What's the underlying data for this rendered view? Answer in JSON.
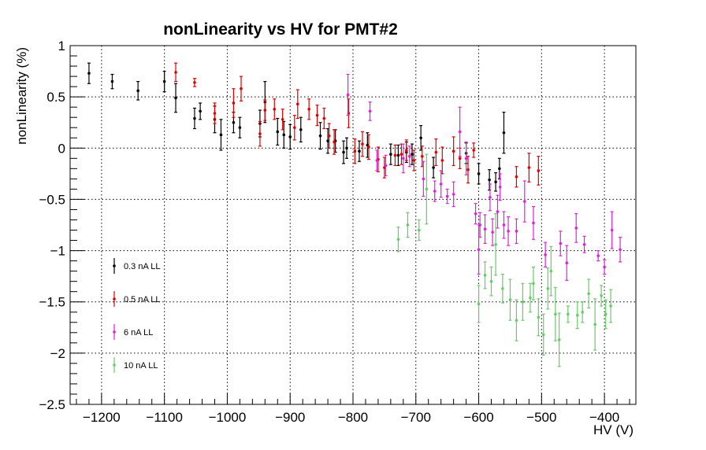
{
  "chart_data": {
    "type": "scatter",
    "title": "nonLinearity vs HV for PMT#2",
    "xlabel": "HV (V)",
    "ylabel": "nonLinearity (%)",
    "xlim": [
      -1250,
      -350
    ],
    "ylim": [
      -2.5,
      1
    ],
    "grid": true,
    "legend_position": "left",
    "x_ticks": [
      -1200,
      -1100,
      -1000,
      -900,
      -800,
      -700,
      -600,
      -500,
      -400
    ],
    "x_tick_labels": [
      "−1200",
      "−1100",
      "−1000",
      "−900",
      "−800",
      "−700",
      "−600",
      "−500",
      "−400"
    ],
    "y_ticks": [
      -2.5,
      -2,
      -1.5,
      -1,
      -0.5,
      0,
      0.5,
      1
    ],
    "y_tick_labels": [
      "−2.5",
      "−2",
      "−1.5",
      "−1",
      "−0.5",
      "0",
      "0.5",
      "1"
    ],
    "series": [
      {
        "name": "0.3 nA LL",
        "color": "#000000",
        "points": [
          [
            -1220,
            0.73,
            0.1
          ],
          [
            -1183,
            0.65,
            0.07
          ],
          [
            -1142,
            0.56,
            0.09
          ],
          [
            -1100,
            0.65,
            0.1
          ],
          [
            -1082,
            0.49,
            0.14
          ],
          [
            -1052,
            0.29,
            0.1
          ],
          [
            -1043,
            0.36,
            0.08
          ],
          [
            -1020,
            0.28,
            0.13
          ],
          [
            -1010,
            0.13,
            0.15
          ],
          [
            -990,
            0.25,
            0.1
          ],
          [
            -980,
            0.2,
            0.1
          ],
          [
            -948,
            0.24,
            0.13
          ],
          [
            -940,
            0.45,
            0.2
          ],
          [
            -920,
            0.16,
            0.13
          ],
          [
            -910,
            0.13,
            0.13
          ],
          [
            -900,
            0.11,
            0.12
          ],
          [
            -883,
            0.18,
            0.12
          ],
          [
            -852,
            0.12,
            0.13
          ],
          [
            -840,
            0.07,
            0.12
          ],
          [
            -828,
            0.07,
            0.11
          ],
          [
            -815,
            -0.04,
            0.11
          ],
          [
            -810,
            0.0,
            0.1
          ],
          [
            -790,
            -0.03,
            0.1
          ],
          [
            -777,
            0.03,
            0.12
          ],
          [
            -740,
            -0.06,
            0.1
          ],
          [
            -728,
            -0.07,
            0.1
          ],
          [
            -715,
            -0.04,
            0.1
          ],
          [
            -706,
            -0.06,
            0.1
          ],
          [
            -692,
            0.1,
            0.12
          ],
          [
            -672,
            -0.19,
            0.1
          ],
          [
            -620,
            -0.05,
            0.1
          ],
          [
            -600,
            -0.25,
            0.1
          ],
          [
            -583,
            -0.31,
            0.1
          ],
          [
            -573,
            -0.33,
            0.09
          ],
          [
            -567,
            -0.2,
            0.1
          ],
          [
            -560,
            0.15,
            0.2
          ]
        ]
      },
      {
        "name": "0.5 nA LL",
        "color": "#e00000",
        "points": [
          [
            -1082,
            0.74,
            0.09
          ],
          [
            -1052,
            0.64,
            0.04
          ],
          [
            -1020,
            0.34,
            0.1
          ],
          [
            -990,
            0.44,
            0.14
          ],
          [
            -978,
            0.58,
            0.12
          ],
          [
            -948,
            0.14,
            0.12
          ],
          [
            -940,
            0.37,
            0.1
          ],
          [
            -925,
            0.38,
            0.1
          ],
          [
            -912,
            0.28,
            0.1
          ],
          [
            -893,
            0.2,
            0.12
          ],
          [
            -888,
            0.43,
            0.14
          ],
          [
            -870,
            0.38,
            0.1
          ],
          [
            -857,
            0.32,
            0.1
          ],
          [
            -846,
            0.29,
            0.1
          ],
          [
            -838,
            0.12,
            0.12
          ],
          [
            -830,
            0.06,
            0.12
          ],
          [
            -807,
            0.34,
            0.14
          ],
          [
            -797,
            -0.03,
            0.12
          ],
          [
            -785,
            0.04,
            0.12
          ],
          [
            -775,
            0.01,
            0.12
          ],
          [
            -760,
            -0.11,
            0.12
          ],
          [
            -750,
            -0.19,
            0.1
          ],
          [
            -733,
            -0.07,
            0.1
          ],
          [
            -723,
            -0.06,
            0.1
          ],
          [
            -715,
            -0.02,
            0.1
          ],
          [
            -703,
            -0.12,
            0.1
          ],
          [
            -690,
            -0.08,
            0.1
          ],
          [
            -668,
            -0.04,
            0.13
          ],
          [
            -658,
            -0.12,
            0.13
          ],
          [
            -640,
            -0.03,
            0.14
          ],
          [
            -630,
            -0.1,
            0.1
          ],
          [
            -617,
            -0.21,
            0.13
          ],
          [
            -608,
            -0.02,
            0.07
          ],
          [
            -540,
            -0.28,
            0.1
          ],
          [
            -520,
            -0.19,
            0.14
          ],
          [
            -505,
            -0.22,
            0.14
          ]
        ]
      },
      {
        "name": "6 nA LL",
        "color": "#e020e0",
        "points": [
          [
            -808,
            0.52,
            0.2
          ],
          [
            -773,
            0.36,
            0.09
          ],
          [
            -762,
            -0.12,
            0.1
          ],
          [
            -748,
            -0.17,
            0.1
          ],
          [
            -720,
            -0.1,
            0.14
          ],
          [
            -710,
            -0.08,
            0.1
          ],
          [
            -688,
            -0.3,
            0.17
          ],
          [
            -670,
            -0.42,
            0.1
          ],
          [
            -660,
            -0.35,
            0.13
          ],
          [
            -650,
            -0.47,
            0.07
          ],
          [
            -640,
            -0.45,
            0.12
          ],
          [
            -630,
            0.16,
            0.24
          ],
          [
            -620,
            -0.1,
            0.16
          ],
          [
            -605,
            -0.64,
            0.1
          ],
          [
            -600,
            -0.99,
            0.24
          ],
          [
            -598,
            -0.75,
            0.12
          ],
          [
            -590,
            -0.79,
            0.14
          ],
          [
            -582,
            -0.48,
            0.13
          ],
          [
            -578,
            -0.82,
            0.13
          ],
          [
            -570,
            -0.62,
            0.16
          ],
          [
            -566,
            -0.38,
            0.13
          ],
          [
            -560,
            -0.75,
            0.13
          ],
          [
            -553,
            -0.81,
            0.14
          ],
          [
            -540,
            -0.81,
            0.12
          ],
          [
            -527,
            -0.52,
            0.2
          ],
          [
            -513,
            -0.73,
            0.16
          ],
          [
            -494,
            -1.04,
            0.12
          ],
          [
            -470,
            -0.93,
            0.12
          ],
          [
            -460,
            -1.12,
            0.17
          ],
          [
            -445,
            -0.78,
            0.14
          ],
          [
            -432,
            -0.94,
            0.08
          ],
          [
            -410,
            -1.05,
            0.05
          ],
          [
            -400,
            -1.16,
            0.07
          ],
          [
            -388,
            -0.8,
            0.18
          ],
          [
            -375,
            -0.99,
            0.12
          ]
        ]
      },
      {
        "name": "10 nA LL",
        "color": "#66cc66",
        "points": [
          [
            -728,
            -0.89,
            0.12
          ],
          [
            -713,
            -0.75,
            0.12
          ],
          [
            -695,
            -0.8,
            0.1
          ],
          [
            -683,
            -0.4,
            0.34
          ],
          [
            -600,
            -1.52,
            0.18
          ],
          [
            -590,
            -1.24,
            0.13
          ],
          [
            -580,
            -1.3,
            0.14
          ],
          [
            -573,
            -0.94,
            0.3
          ],
          [
            -562,
            -1.37,
            0.14
          ],
          [
            -550,
            -1.48,
            0.2
          ],
          [
            -540,
            -1.68,
            0.2
          ],
          [
            -530,
            -1.5,
            0.18
          ],
          [
            -518,
            -1.46,
            0.14
          ],
          [
            -513,
            -1.32,
            0.16
          ],
          [
            -505,
            -1.65,
            0.18
          ],
          [
            -497,
            -1.82,
            0.2
          ],
          [
            -490,
            -1.37,
            0.2
          ],
          [
            -485,
            -1.2,
            0.24
          ],
          [
            -478,
            -1.62,
            0.26
          ],
          [
            -472,
            -1.87,
            0.26
          ],
          [
            -458,
            -1.62,
            0.08
          ],
          [
            -443,
            -1.63,
            0.13
          ],
          [
            -435,
            -1.6,
            0.1
          ],
          [
            -425,
            -1.42,
            0.14
          ],
          [
            -415,
            -1.72,
            0.25
          ],
          [
            -405,
            -1.44,
            0.1
          ],
          [
            -398,
            -1.62,
            0.14
          ],
          [
            -390,
            -1.54,
            0.16
          ]
        ]
      }
    ]
  }
}
